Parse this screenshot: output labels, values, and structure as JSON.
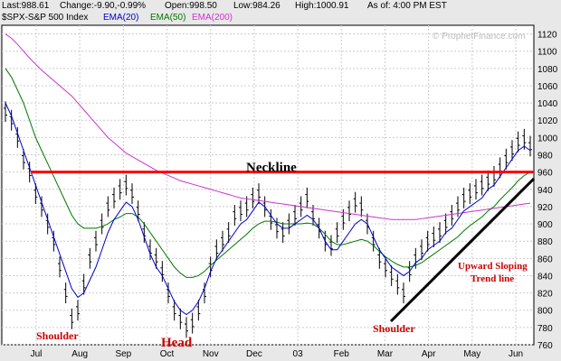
{
  "header": {
    "last": "Last:988.61",
    "change": "Change:-9.90,-0.99%",
    "open": "Open:998.50",
    "low": "Low:984.26",
    "high": "High:1000.91",
    "asof": "As of:  4:00 PM EST"
  },
  "legend": {
    "symbol": "$SPX-S&P 500 Index",
    "ema20": "EMA(20)",
    "ema50": "EMA(50)",
    "ema200": "EMA(200)"
  },
  "watermark": "© ProphetFinance.com",
  "colors": {
    "background": "#ffffff",
    "ema20": "#0000cc",
    "ema50": "#007700",
    "ema200": "#cc33cc",
    "neckline": "#ff0000",
    "trendline": "#000000",
    "annotation": "#cc0000"
  },
  "chart_data": {
    "type": "ohlc-bar",
    "ylim": [
      760,
      1130
    ],
    "y_ticks": [
      760,
      780,
      800,
      820,
      840,
      860,
      880,
      900,
      920,
      940,
      960,
      980,
      1000,
      1020,
      1040,
      1060,
      1080,
      1100,
      1120
    ],
    "x_ticks": [
      "Jul",
      "Aug",
      "Sep",
      "Oct",
      "Nov",
      "Dec",
      "03",
      "Feb",
      "Mar",
      "Apr",
      "May",
      "Jun"
    ],
    "grid": true,
    "price": [
      1030,
      1020,
      1000,
      975,
      960,
      935,
      920,
      900,
      880,
      850,
      820,
      790,
      800,
      830,
      860,
      880,
      900,
      920,
      930,
      940,
      945,
      935,
      915,
      890,
      870,
      860,
      845,
      820,
      800,
      790,
      780,
      785,
      800,
      820,
      850,
      870,
      880,
      890,
      910,
      915,
      920,
      930,
      935,
      920,
      905,
      895,
      890,
      900,
      910,
      920,
      930,
      910,
      895,
      880,
      875,
      890,
      905,
      915,
      925,
      920,
      900,
      880,
      860,
      850,
      840,
      830,
      820,
      845,
      860,
      870,
      880,
      885,
      890,
      900,
      910,
      920,
      930,
      935,
      940,
      945,
      950,
      955,
      965,
      975,
      985,
      995,
      998,
      990
    ],
    "ema20": [
      1040,
      1025,
      1005,
      985,
      965,
      945,
      925,
      905,
      885,
      865,
      845,
      825,
      815,
      820,
      835,
      850,
      870,
      890,
      905,
      915,
      925,
      920,
      905,
      885,
      865,
      850,
      840,
      825,
      810,
      800,
      795,
      800,
      810,
      825,
      845,
      860,
      870,
      880,
      890,
      900,
      905,
      915,
      925,
      920,
      910,
      900,
      895,
      895,
      900,
      905,
      910,
      905,
      895,
      880,
      870,
      870,
      880,
      890,
      900,
      905,
      900,
      885,
      870,
      860,
      850,
      845,
      840,
      845,
      855,
      860,
      870,
      875,
      880,
      890,
      895,
      905,
      915,
      920,
      925,
      930,
      940,
      945,
      955,
      965,
      975,
      985,
      990,
      985
    ],
    "ema50": [
      1080,
      1070,
      1055,
      1040,
      1020,
      1000,
      985,
      970,
      955,
      940,
      925,
      910,
      900,
      895,
      895,
      895,
      897,
      900,
      905,
      908,
      912,
      912,
      908,
      900,
      890,
      880,
      870,
      860,
      850,
      843,
      838,
      838,
      840,
      845,
      852,
      858,
      864,
      870,
      876,
      882,
      888,
      895,
      900,
      903,
      903,
      902,
      900,
      900,
      900,
      900,
      901,
      900,
      895,
      888,
      880,
      876,
      876,
      878,
      880,
      882,
      880,
      875,
      868,
      862,
      857,
      853,
      850,
      850,
      852,
      855,
      860,
      865,
      870,
      875,
      880,
      885,
      892,
      898,
      903,
      908,
      915,
      920,
      928,
      935,
      942,
      950,
      956,
      960
    ],
    "ema200": [
      1120,
      1115,
      1108,
      1100,
      1092,
      1085,
      1078,
      1072,
      1066,
      1060,
      1054,
      1048,
      1040,
      1032,
      1024,
      1016,
      1008,
      1000,
      994,
      988,
      982,
      978,
      974,
      970,
      966,
      962,
      959,
      956,
      953,
      950,
      948,
      946,
      944,
      942,
      940,
      938,
      936,
      934,
      932,
      930,
      929,
      928,
      927,
      926,
      925,
      924,
      923,
      922,
      921,
      920,
      919,
      918,
      917,
      916,
      915,
      914,
      913,
      912,
      911,
      910,
      909,
      908,
      907,
      906,
      905,
      905,
      905,
      905,
      905,
      906,
      907,
      908,
      909,
      910,
      911,
      912,
      913,
      914,
      915,
      916,
      917,
      918,
      919,
      920,
      921,
      922,
      923,
      924
    ],
    "annotations": {
      "neckline": {
        "label": "Neckline",
        "y": 960
      },
      "trend_label_1": "Upward Sloping",
      "trend_label_2": "Trend line",
      "shoulder_left": "Shoulder",
      "head": "Head",
      "shoulder_right": "Shoulder"
    }
  }
}
